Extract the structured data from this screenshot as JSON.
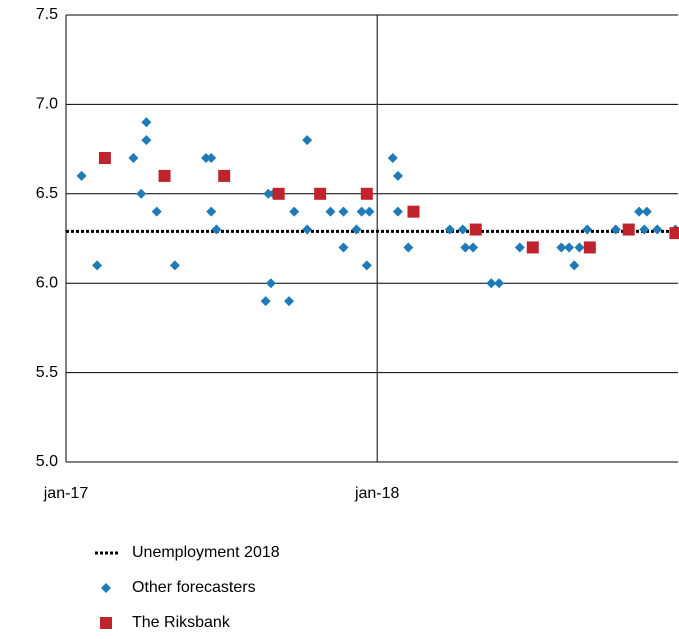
{
  "chart_data": {
    "type": "scatter",
    "xlim": [
      0,
      23.6
    ],
    "xticks": [
      {
        "value": 0,
        "label": "jan-17"
      },
      {
        "value": 12,
        "label": "jan-18"
      }
    ],
    "ylim": [
      5.0,
      7.5
    ],
    "yticks": [
      {
        "value": 5.0,
        "label": "5.0"
      },
      {
        "value": 5.5,
        "label": "5.5"
      },
      {
        "value": 6.0,
        "label": "6.0"
      },
      {
        "value": 6.5,
        "label": "6.5"
      },
      {
        "value": 7.0,
        "label": "7.0"
      },
      {
        "value": 7.5,
        "label": "7.5"
      }
    ],
    "grid": true,
    "reference_line": {
      "name": "Unemployment 2018",
      "value": 6.29,
      "color": "#000000"
    },
    "series": [
      {
        "name": "Other forecasters",
        "color": "#1f7ab8",
        "marker": "diamond",
        "x": [
          0.6,
          1.2,
          2.6,
          2.9,
          3.1,
          3.1,
          3.5,
          3.8,
          4.2,
          5.4,
          5.6,
          5.6,
          5.8,
          7.7,
          7.9,
          7.8,
          8.0,
          8.6,
          8.8,
          9.3,
          9.3,
          10.2,
          10.7,
          10.7,
          11.2,
          11.4,
          11.6,
          11.7,
          12.6,
          12.8,
          12.8,
          13.2,
          14.8,
          15.3,
          15.4,
          15.7,
          16.4,
          16.7,
          17.5,
          19.1,
          19.4,
          19.6,
          19.8,
          20.1,
          21.2,
          22.1,
          22.4,
          22.3,
          22.8,
          23.5
        ],
        "values": [
          6.6,
          6.1,
          6.7,
          6.5,
          6.9,
          6.8,
          6.4,
          6.6,
          6.1,
          6.7,
          6.7,
          6.4,
          6.3,
          5.9,
          6.0,
          6.5,
          6.5,
          5.9,
          6.4,
          6.8,
          6.3,
          6.4,
          6.2,
          6.4,
          6.3,
          6.4,
          6.1,
          6.4,
          6.7,
          6.6,
          6.4,
          6.2,
          6.3,
          6.3,
          6.2,
          6.2,
          6.0,
          6.0,
          6.2,
          6.2,
          6.2,
          6.1,
          6.2,
          6.3,
          6.3,
          6.4,
          6.4,
          6.3,
          6.3,
          6.3
        ]
      },
      {
        "name": "The Riksbank",
        "color": "#c0232c",
        "marker": "square",
        "x": [
          1.5,
          3.8,
          6.1,
          8.2,
          9.8,
          11.6,
          13.4,
          15.8,
          18.0,
          20.2,
          21.7,
          23.5
        ],
        "values": [
          6.7,
          6.6,
          6.6,
          6.5,
          6.5,
          6.5,
          6.4,
          6.3,
          6.2,
          6.2,
          6.3,
          6.28
        ]
      }
    ]
  }
}
